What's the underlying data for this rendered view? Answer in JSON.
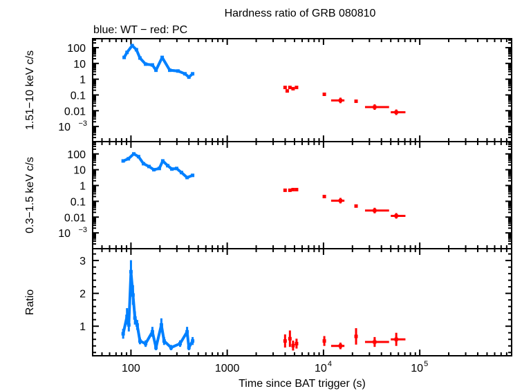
{
  "title": "Hardness ratio of GRB 080810",
  "subtitle": "blue: WT − red: PC",
  "xlabel": "Time since BAT trigger (s)",
  "colors": {
    "WT": "#0080ff",
    "PC": "#ff0000"
  },
  "x_axis": {
    "scale": "log",
    "xlim": [
      40,
      900000
    ],
    "ticks": [
      {
        "value": 100,
        "label": "100"
      },
      {
        "value": 1000,
        "label": "1000"
      },
      {
        "value": 10000,
        "label": "10",
        "exp": "4"
      },
      {
        "value": 100000,
        "label": "10",
        "exp": "5"
      }
    ]
  },
  "chart_data": [
    {
      "type": "scatter",
      "ylabel": "1.51−10 keV c/s",
      "yscale": "log",
      "ylim": [
        0.00011,
        370
      ],
      "yticks": [
        {
          "value": 100,
          "label": "100"
        },
        {
          "value": 10,
          "label": "10"
        },
        {
          "value": 1,
          "label": "1"
        },
        {
          "value": 0.1,
          "label": "0.1"
        },
        {
          "value": 0.01,
          "label": "0.01"
        },
        {
          "value": 0.001,
          "label": "10",
          "exp": "−3"
        }
      ],
      "series": [
        {
          "name": "WT",
          "x": [
            85,
            91,
            103,
            114,
            124,
            142,
            167,
            182,
            211,
            253,
            308,
            364,
            400,
            437
          ],
          "y": [
            24,
            50,
            135,
            74,
            22,
            9,
            8,
            3.7,
            24,
            3.7,
            3.3,
            2.2,
            1.35,
            2.2
          ]
        },
        {
          "name": "PC",
          "x": [
            3990,
            4200,
            4480,
            4830,
            5250,
            10200,
            15000,
            21800,
            34000,
            57000
          ],
          "y": [
            0.3,
            0.18,
            0.3,
            0.25,
            0.3,
            0.11,
            0.045,
            0.04,
            0.017,
            0.008
          ],
          "xerr_lo": [
            0,
            0,
            0,
            0,
            0,
            0,
            12000,
            0,
            27000,
            50000
          ],
          "xerr_hi": [
            0,
            0,
            0,
            0,
            0,
            0,
            16500,
            0,
            48000,
            71000
          ]
        }
      ]
    },
    {
      "type": "scatter",
      "ylabel": "0.3−1.5 keV c/s",
      "yscale": "log",
      "ylim": [
        0.0001,
        600
      ],
      "yticks": [
        {
          "value": 100,
          "label": "100"
        },
        {
          "value": 10,
          "label": "10"
        },
        {
          "value": 1,
          "label": "1"
        },
        {
          "value": 0.1,
          "label": "0.1"
        },
        {
          "value": 0.01,
          "label": "0.01"
        },
        {
          "value": 0.001,
          "label": "10",
          "exp": "−3"
        }
      ],
      "series": [
        {
          "name": "WT",
          "x": [
            83,
            94,
            107,
            120,
            135,
            154,
            173,
            197,
            214,
            241,
            266,
            298,
            335,
            383,
            437
          ],
          "y": [
            36,
            49,
            100,
            67,
            24,
            16,
            10,
            12,
            36,
            18,
            11,
            12,
            6.6,
            3.2,
            4.4
          ]
        },
        {
          "name": "PC",
          "x": [
            3990,
            4480,
            4830,
            5250,
            10200,
            15000,
            21800,
            34000,
            57000
          ],
          "y": [
            0.5,
            0.5,
            0.55,
            0.55,
            0.2,
            0.11,
            0.05,
            0.026,
            0.012
          ],
          "xerr_lo": [
            0,
            0,
            0,
            0,
            0,
            12000,
            0,
            27000,
            50000
          ],
          "xerr_hi": [
            0,
            0,
            0,
            0,
            0,
            16500,
            0,
            48000,
            71000
          ]
        }
      ]
    },
    {
      "type": "scatter",
      "ylabel": "Ratio",
      "yscale": "linear",
      "ylim": [
        0.1,
        3.36
      ],
      "yticks": [
        {
          "value": 1,
          "label": "1"
        },
        {
          "value": 2,
          "label": "2"
        },
        {
          "value": 3,
          "label": "3"
        }
      ],
      "series": [
        {
          "name": "WT",
          "x": [
            83,
            91,
            95,
            100,
            105,
            110,
            116,
            124,
            142,
            167,
            182,
            207,
            221,
            261,
            324,
            383,
            400,
            437
          ],
          "y": [
            0.77,
            1.3,
            1.04,
            2.66,
            1.95,
            1.25,
            1.04,
            0.55,
            0.47,
            0.83,
            0.35,
            1.04,
            0.55,
            0.35,
            0.47,
            0.83,
            0.35,
            0.55
          ],
          "yerr": [
            0.15,
            0.25,
            0.2,
            0.35,
            0.3,
            0.2,
            0.15,
            0.1,
            0.1,
            0.15,
            0.08,
            0.2,
            0.12,
            0.08,
            0.1,
            0.15,
            0.08,
            0.12
          ]
        },
        {
          "name": "PC",
          "x": [
            3990,
            4480,
            4830,
            5250,
            10200,
            15000,
            21800,
            34000,
            57000
          ],
          "y": [
            0.55,
            0.62,
            0.41,
            0.47,
            0.55,
            0.4,
            0.69,
            0.52,
            0.6
          ],
          "yerr": [
            0.2,
            0.25,
            0.15,
            0.15,
            0.15,
            0.1,
            0.25,
            0.15,
            0.2
          ],
          "xerr_lo": [
            0,
            0,
            0,
            0,
            0,
            12000,
            0,
            27000,
            50000
          ],
          "xerr_hi": [
            0,
            0,
            0,
            0,
            0,
            16500,
            0,
            48000,
            71000
          ]
        }
      ]
    }
  ]
}
